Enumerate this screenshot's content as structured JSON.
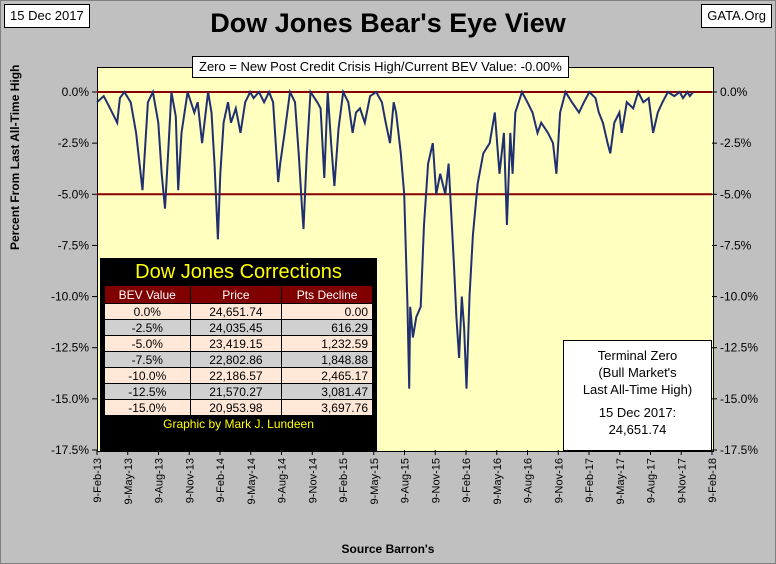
{
  "header": {
    "date": "15 Dec 2017",
    "title": "Dow Jones Bear's Eye View",
    "source_tag": "GATA.Org"
  },
  "colors": {
    "plot_background": "#ffffc0",
    "line": "#1f2f6f",
    "reference_lines": "#8b0000",
    "table_header": "#800000",
    "table_title": "#ffff00"
  },
  "zero_note": "Zero = New Post Credit Crisis High/Current BEV Value:  -0.00%",
  "axis": {
    "ylabel": "Percent From Last All-Time High",
    "xlabel": "Source Barron's"
  },
  "corrections_table": {
    "title": "Dow Jones Corrections",
    "columns": [
      "BEV Value",
      "Price",
      "Pts Decline"
    ],
    "rows": [
      [
        "0.0%",
        "24,651.74",
        "0.00"
      ],
      [
        "-2.5%",
        "24,035.45",
        "616.29"
      ],
      [
        "-5.0%",
        "23,419.15",
        "1,232.59"
      ],
      [
        "-7.5%",
        "22,802.86",
        "1,848.88"
      ],
      [
        "-10.0%",
        "22,186.57",
        "2,465.17"
      ],
      [
        "-12.5%",
        "21,570.27",
        "3,081.47"
      ],
      [
        "-15.0%",
        "20,953.98",
        "3,697.76"
      ]
    ],
    "credit": "Graphic by Mark J. Lundeen"
  },
  "terminal_box": {
    "line1": "Terminal Zero",
    "line2": "(Bull Market's",
    "line3": "Last All-Time High)",
    "line4": "15 Dec 2017:",
    "line5": "24,651.74"
  },
  "chart_data": {
    "type": "line",
    "title": "Dow Jones Bear's Eye View",
    "xlabel": "Source Barron's",
    "ylabel": "Percent From Last All-Time High",
    "ylim": [
      -17.5,
      0
    ],
    "yticks": [
      "0.0%",
      "-2.5%",
      "-5.0%",
      "-7.5%",
      "-10.0%",
      "-12.5%",
      "-15.0%",
      "-17.5%"
    ],
    "ytick_values": [
      0,
      -2.5,
      -5,
      -7.5,
      -10,
      -12.5,
      -15,
      -17.5
    ],
    "xticks": [
      "9-Feb-13",
      "9-May-13",
      "9-Aug-13",
      "9-Nov-13",
      "9-Feb-14",
      "9-May-14",
      "9-Aug-14",
      "9-Nov-14",
      "9-Feb-15",
      "9-May-15",
      "9-Aug-15",
      "9-Nov-15",
      "9-Feb-16",
      "9-May-16",
      "9-Aug-16",
      "9-Nov-16",
      "9-Feb-17",
      "9-May-17",
      "9-Aug-17",
      "9-Nov-17",
      "9-Feb-18"
    ],
    "reference_lines": [
      0,
      -5
    ],
    "grid": false,
    "series": [
      {
        "x": [
          "2013-02-09",
          "2013-03-01",
          "2013-03-20",
          "2013-04-10",
          "2013-04-18",
          "2013-05-01",
          "2013-05-20",
          "2013-06-05",
          "2013-06-24",
          "2013-07-10",
          "2013-07-25",
          "2013-08-10",
          "2013-08-20",
          "2013-08-30",
          "2013-09-10",
          "2013-09-18",
          "2013-10-01",
          "2013-10-08",
          "2013-10-18",
          "2013-11-05",
          "2013-11-25",
          "2013-12-05",
          "2013-12-18",
          "2014-01-05",
          "2014-01-15",
          "2014-01-24",
          "2014-02-03",
          "2014-02-10",
          "2014-02-20",
          "2014-03-05",
          "2014-03-14",
          "2014-03-28",
          "2014-04-11",
          "2014-04-25",
          "2014-05-10",
          "2014-05-20",
          "2014-06-05",
          "2014-06-20",
          "2014-07-05",
          "2014-07-17",
          "2014-08-01",
          "2014-08-07",
          "2014-08-20",
          "2014-09-05",
          "2014-09-20",
          "2014-10-01",
          "2014-10-10",
          "2014-10-15",
          "2014-10-25",
          "2014-11-05",
          "2014-11-25",
          "2014-12-05",
          "2014-12-16",
          "2014-12-26",
          "2015-01-05",
          "2015-01-15",
          "2015-01-27",
          "2015-02-10",
          "2015-02-25",
          "2015-03-10",
          "2015-03-20",
          "2015-04-01",
          "2015-04-15",
          "2015-05-01",
          "2015-05-19",
          "2015-06-05",
          "2015-06-15",
          "2015-06-29",
          "2015-07-10",
          "2015-07-17",
          "2015-07-31",
          "2015-08-10",
          "2015-08-20",
          "2015-08-25",
          "2015-08-28",
          "2015-09-05",
          "2015-09-15",
          "2015-09-28",
          "2015-10-08",
          "2015-10-20",
          "2015-11-03",
          "2015-11-13",
          "2015-11-25",
          "2015-12-10",
          "2015-12-20",
          "2016-01-05",
          "2016-01-12",
          "2016-01-20",
          "2016-01-28",
          "2016-02-04",
          "2016-02-11",
          "2016-02-20",
          "2016-03-01",
          "2016-03-15",
          "2016-04-01",
          "2016-04-20",
          "2016-05-05",
          "2016-05-19",
          "2016-06-01",
          "2016-06-10",
          "2016-06-20",
          "2016-06-27",
          "2016-07-05",
          "2016-07-15",
          "2016-07-25",
          "2016-08-10",
          "2016-08-25",
          "2016-09-09",
          "2016-09-20",
          "2016-10-10",
          "2016-10-25",
          "2016-11-04",
          "2016-11-15",
          "2016-12-01",
          "2016-12-20",
          "2017-01-10",
          "2017-01-25",
          "2017-02-10",
          "2017-02-28",
          "2017-03-10",
          "2017-03-22",
          "2017-04-05",
          "2017-04-13",
          "2017-04-25",
          "2017-05-10",
          "2017-05-17",
          "2017-06-01",
          "2017-06-20",
          "2017-07-05",
          "2017-07-20",
          "2017-08-05",
          "2017-08-18",
          "2017-09-01",
          "2017-09-15",
          "2017-10-01",
          "2017-10-20",
          "2017-11-05",
          "2017-11-15",
          "2017-11-28",
          "2017-12-05",
          "2017-12-15"
        ],
        "y": [
          -0.5,
          -0.2,
          -0.8,
          -1.5,
          -0.3,
          0,
          -0.5,
          -2.0,
          -4.8,
          -0.5,
          0,
          -1.5,
          -4.0,
          -5.7,
          -2.5,
          0,
          -1.2,
          -4.8,
          -2.0,
          0,
          -1.0,
          -0.5,
          -2.5,
          0,
          -1.0,
          -3.5,
          -7.2,
          -4.0,
          -1.5,
          -0.5,
          -1.5,
          -0.8,
          -2.0,
          -0.5,
          0,
          -0.3,
          0,
          -0.5,
          0,
          -0.5,
          -4.4,
          -3.5,
          -2.0,
          0,
          -0.5,
          -3.0,
          -5.5,
          -6.7,
          -3.0,
          0,
          -0.5,
          -0.8,
          -4.2,
          0,
          -2.5,
          -4.6,
          -1.8,
          0,
          -0.5,
          -2.0,
          -1.0,
          -0.8,
          -1.5,
          -0.2,
          0,
          -0.5,
          -1.4,
          -2.5,
          -0.5,
          -1.0,
          -3.0,
          -5.0,
          -10.5,
          -14.5,
          -10.5,
          -12.0,
          -11.0,
          -10.5,
          -6.5,
          -3.5,
          -2.5,
          -5.0,
          -4.0,
          -5.0,
          -3.5,
          -8.5,
          -11.0,
          -13.0,
          -10.0,
          -11.5,
          -14.5,
          -10.0,
          -7.0,
          -4.5,
          -3.0,
          -2.5,
          -1.0,
          -4.0,
          -2.0,
          -6.5,
          -2.0,
          -4.0,
          -1.0,
          -0.5,
          0,
          -0.5,
          -1.0,
          -2.0,
          -1.5,
          -2.0,
          -2.5,
          -4.0,
          -1.0,
          0,
          -0.5,
          -1.0,
          -0.5,
          0,
          -0.3,
          -1.0,
          -1.5,
          -2.5,
          -3.0,
          -1.5,
          -1.0,
          -2.0,
          -0.5,
          -0.8,
          0,
          -0.5,
          -0.3,
          -2.0,
          -1.0,
          -0.5,
          0,
          -0.2,
          0,
          -0.3,
          0,
          -0.2,
          0
        ]
      }
    ]
  }
}
